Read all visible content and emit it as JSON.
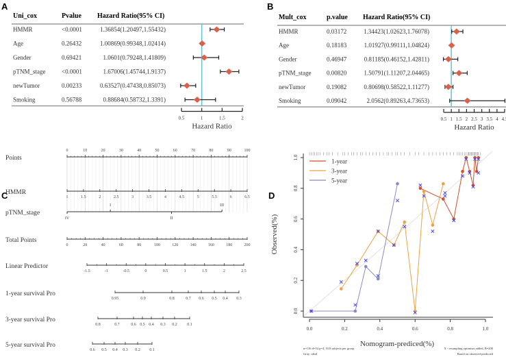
{
  "panels": {
    "a": "A",
    "b": "B",
    "c": "C",
    "d": "D"
  },
  "chart_data": [
    {
      "type": "forest",
      "headers": [
        "Uni_cox",
        "Pvalue",
        "Hazard Ratio(95% CI)"
      ],
      "rows": [
        {
          "name": "HMMR",
          "p": "<0.0001",
          "ci_text": "1.36854(1.20497,1.55432)",
          "hr": 1.36854,
          "lo": 1.20497,
          "hi": 1.55432
        },
        {
          "name": "Age",
          "p": "0.26432",
          "ci_text": "1.00869(0.99348,1.02414)",
          "hr": 1.00869,
          "lo": 0.99348,
          "hi": 1.02414
        },
        {
          "name": "Gender",
          "p": "0.69421",
          "ci_text": "1.0601(0.79248,1.41809)",
          "hr": 1.0601,
          "lo": 0.79248,
          "hi": 1.41809
        },
        {
          "name": "pTNM_stage",
          "p": "<0.0001",
          "ci_text": "1.67006(1.45744,1.9137)",
          "hr": 1.67006,
          "lo": 1.45744,
          "hi": 1.9137
        },
        {
          "name": "newTumor",
          "p": "0.00233",
          "ci_text": "0.63527(0.47438,0.85073)",
          "hr": 0.63527,
          "lo": 0.47438,
          "hi": 0.85073
        },
        {
          "name": "Smoking",
          "p": "0.56788",
          "ci_text": "0.88684(0.58732,1.3391)",
          "hr": 0.88684,
          "lo": 0.58732,
          "hi": 1.3391
        }
      ],
      "xticks": [
        "0.5",
        "1",
        "1.5",
        "2"
      ],
      "xlabel": "Hazard Ratio",
      "xlim": [
        0.5,
        2
      ],
      "reference": 1,
      "colors": {
        "point": "#d9614c",
        "reference": "#5fc4d0"
      }
    },
    {
      "type": "forest",
      "headers": [
        "Mult_cox",
        "p.value",
        "Hazard Ratio(95% CI)"
      ],
      "rows": [
        {
          "name": "HMMR",
          "p": "0.03172",
          "ci_text": "1.34423(1.02623,1.76078)",
          "hr": 1.34423,
          "lo": 1.02623,
          "hi": 1.76078
        },
        {
          "name": "Age",
          "p": "0.18183",
          "ci_text": "1.01927(0.99111,1.04824)",
          "hr": 1.01927,
          "lo": 0.99111,
          "hi": 1.04824
        },
        {
          "name": "Gender",
          "p": "0.46947",
          "ci_text": "0.81185(0.46152,1.42811)",
          "hr": 0.81185,
          "lo": 0.46152,
          "hi": 1.42811
        },
        {
          "name": "pTNM_stage",
          "p": "0.00820",
          "ci_text": "1.50791(1.11207,2.04465)",
          "hr": 1.50791,
          "lo": 1.11207,
          "hi": 2.04465
        },
        {
          "name": "newTumor",
          "p": "0.19082",
          "ci_text": "0.80698(0.58522,1.11277)",
          "hr": 0.80698,
          "lo": 0.58522,
          "hi": 1.11277
        },
        {
          "name": "Smoking",
          "p": "0.09042",
          "ci_text": "2.0562(0.89263,4.73653)",
          "hr": 2.0562,
          "lo": 0.89263,
          "hi": 4.73653
        }
      ],
      "xticks": [
        "0.5",
        "1",
        "1.5",
        "2",
        "2.5",
        "3",
        "3.5",
        "4",
        "4.5"
      ],
      "xlabel": "Hazard Ratio",
      "xlim": [
        0.5,
        4.5
      ],
      "reference": 1,
      "colors": {
        "point": "#d9614c",
        "reference": "#5fc4d0"
      }
    },
    {
      "type": "nomogram",
      "scales": [
        {
          "label": "Points",
          "ticks": [
            "0",
            "10",
            "20",
            "30",
            "40",
            "50",
            "60",
            "70",
            "80",
            "90",
            "100"
          ],
          "labels_above": true
        },
        {
          "label": "HMMR",
          "ticks": [
            "1",
            "1.5",
            "2",
            "2.5",
            "3",
            "3.5",
            "4",
            "4.5",
            "5",
            "5.5",
            "6",
            "6.5"
          ]
        },
        {
          "label": "pTNM_stage",
          "categories_above": [
            {
              "t": "I",
              "points": 24
            },
            {
              "t": "III",
              "points": 86
            }
          ],
          "categories_below": [
            {
              "t": "IV",
              "points": 0
            },
            {
              "t": "II",
              "points": 58
            }
          ]
        },
        {
          "label": "Total Points",
          "ticks": [
            "0",
            "20",
            "40",
            "60",
            "80",
            "100",
            "120",
            "140",
            "160",
            "180",
            "200"
          ]
        },
        {
          "label": "Linear Predictor",
          "ticks": [
            "-1.5",
            "-1",
            "-0.5",
            "0",
            "0.5",
            "1",
            "1.5",
            "2",
            "2.5"
          ]
        },
        {
          "label": "1-year survival Pro",
          "ticks": [
            "0.95",
            "0.9",
            "0.8",
            "0.7",
            "0.6",
            "0.5",
            "0.4",
            "0.3"
          ]
        },
        {
          "label": "3-year survival Pro",
          "ticks": [
            "0.8",
            "0.7",
            "0.6",
            "0.5",
            "0.4",
            "0.3",
            "0.2",
            "0.1"
          ]
        },
        {
          "label": "5-year survival Pro",
          "ticks": [
            "0.6",
            "0.5",
            "0.4",
            "0.3",
            "0.2",
            "0.1"
          ]
        }
      ]
    },
    {
      "type": "line",
      "xlabel": "Nomogram-prediced(%)",
      "ylabel": "Observed(%)",
      "xlim": [
        0,
        1
      ],
      "ylim": [
        0,
        1
      ],
      "xticks": [
        "0.0",
        "0.2",
        "0.4",
        "0.6",
        "0.8",
        "1.0"
      ],
      "yticks": [
        "0.0",
        "0.2",
        "0.4",
        "0.6",
        "0.8",
        "1.0"
      ],
      "legend": "top-left",
      "series": [
        {
          "name": "1-year",
          "color": "#d0502f",
          "points": [
            [
              0.63,
              0.8
            ],
            [
              0.76,
              0.73
            ],
            [
              0.82,
              0.6
            ],
            [
              0.87,
              0.91
            ],
            [
              0.89,
              1.0
            ],
            [
              0.91,
              0.91
            ],
            [
              0.93,
              0.82
            ],
            [
              0.94,
              1.0
            ],
            [
              0.95,
              0.91
            ],
            [
              0.96,
              1.0
            ]
          ]
        },
        {
          "name": "3-year",
          "color": "#f0a040",
          "points": [
            [
              0.18,
              0.145
            ],
            [
              0.27,
              0.3
            ],
            [
              0.39,
              0.52
            ],
            [
              0.48,
              0.43
            ],
            [
              0.54,
              0.58
            ],
            [
              0.6,
              0.0
            ],
            [
              0.65,
              0.78
            ],
            [
              0.7,
              0.56
            ],
            [
              0.76,
              0.83
            ]
          ]
        },
        {
          "name": "5-year",
          "color": "#8c88c8",
          "points": [
            [
              0.01,
              0.0
            ],
            [
              0.26,
              0.0
            ],
            [
              0.32,
              0.29
            ],
            [
              0.39,
              0.21
            ],
            [
              0.5,
              0.83
            ]
          ]
        }
      ],
      "optimism_points": [
        [
          0.01,
          0
        ],
        [
          0.18,
          0.19
        ],
        [
          0.26,
          0.04
        ],
        [
          0.27,
          0.31
        ],
        [
          0.32,
          0.33
        ],
        [
          0.39,
          0.52
        ],
        [
          0.39,
          0.23
        ],
        [
          0.48,
          0.43
        ],
        [
          0.5,
          0.72
        ],
        [
          0.54,
          0.55
        ],
        [
          0.6,
          -0.01
        ],
        [
          0.63,
          0.82
        ],
        [
          0.65,
          0.75
        ],
        [
          0.7,
          0.52
        ],
        [
          0.77,
          0.77
        ],
        [
          0.77,
          0.75
        ],
        [
          0.82,
          0.59
        ],
        [
          0.87,
          0.88
        ],
        [
          0.89,
          0.99
        ],
        [
          0.91,
          0.9
        ],
        [
          0.93,
          0.81
        ],
        [
          0.94,
          0.99
        ],
        [
          0.96,
          0.9
        ],
        [
          0.96,
          0.99
        ]
      ],
      "rug": [
        0.0,
        0.01,
        0.02,
        0.03,
        0.04,
        0.05,
        0.06,
        0.08,
        0.1,
        0.11,
        0.13,
        0.16,
        0.19,
        0.2,
        0.22,
        0.24,
        0.25,
        0.27,
        0.29,
        0.3,
        0.32,
        0.34,
        0.36,
        0.38,
        0.4,
        0.42,
        0.44,
        0.45,
        0.47,
        0.49,
        0.5,
        0.52,
        0.54,
        0.57,
        0.6,
        0.62,
        0.65,
        0.68,
        0.7,
        0.72,
        0.74,
        0.76,
        0.78,
        0.8,
        0.82,
        0.84,
        0.85,
        0.86,
        0.87,
        0.88,
        0.89,
        0.9,
        0.905,
        0.91,
        0.915,
        0.92,
        0.925,
        0.93,
        0.935,
        0.94,
        0.945,
        0.95,
        0.955,
        0.96,
        0.97
      ],
      "colors": {
        "ideal": "#e0e0e0",
        "optimism": "#3b3bff"
      },
      "footnotes": {
        "left1": "n=136 d=54 p=4, 10.8 subjects per group",
        "left2": "Gray: ideal",
        "right1": "X - resampling optimism added, B=200",
        "right2": "Based on observed-predicted"
      }
    }
  ]
}
